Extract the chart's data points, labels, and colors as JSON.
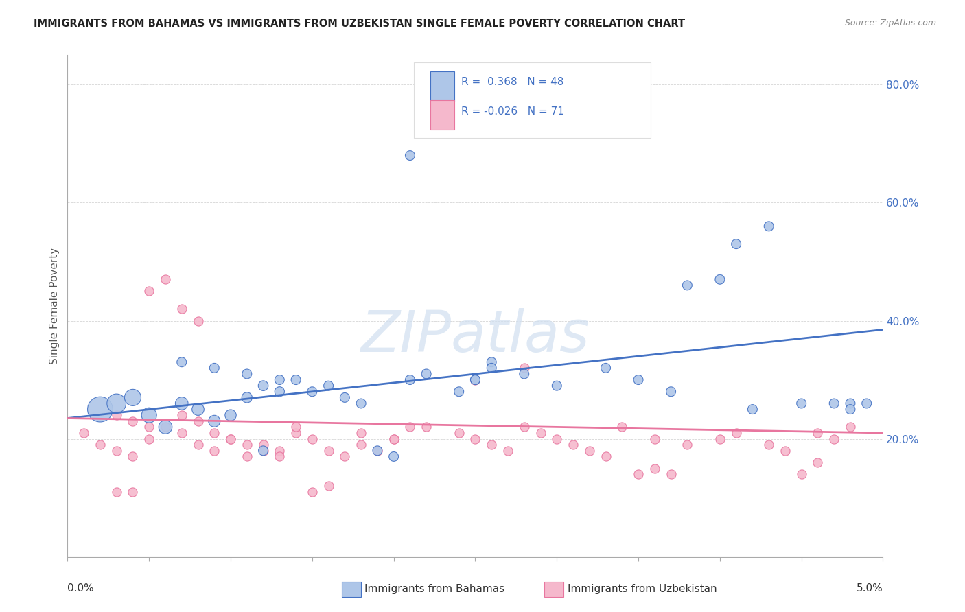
{
  "title": "IMMIGRANTS FROM BAHAMAS VS IMMIGRANTS FROM UZBEKISTAN SINGLE FEMALE POVERTY CORRELATION CHART",
  "source": "Source: ZipAtlas.com",
  "ylabel": "Single Female Poverty",
  "xlim": [
    0.0,
    0.05
  ],
  "ylim": [
    0.0,
    85.0
  ],
  "yticks": [
    20,
    40,
    60,
    80
  ],
  "ytick_labels": [
    "20.0%",
    "40.0%",
    "60.0%",
    "80.0%"
  ],
  "color_bahamas": "#aec6e8",
  "color_uzbekistan": "#f5b8cc",
  "line_color_bahamas": "#4472c4",
  "line_color_uzbekistan": "#e8769f",
  "watermark": "ZIPatlas",
  "watermark_color": "#d0dff0",
  "trend_bahamas": [
    0.0,
    23.5,
    0.05,
    38.5
  ],
  "trend_uzbekistan": [
    0.0,
    23.5,
    0.05,
    21.0
  ],
  "bahamas_x": [
    0.002,
    0.003,
    0.004,
    0.005,
    0.006,
    0.007,
    0.008,
    0.009,
    0.01,
    0.011,
    0.012,
    0.013,
    0.014,
    0.015,
    0.016,
    0.017,
    0.018,
    0.007,
    0.009,
    0.011,
    0.013,
    0.012,
    0.021,
    0.022,
    0.024,
    0.025,
    0.026,
    0.028,
    0.03,
    0.033,
    0.037,
    0.038,
    0.041,
    0.043,
    0.045,
    0.047,
    0.048,
    0.049,
    0.021,
    0.025,
    0.026,
    0.035,
    0.04,
    0.019,
    0.02,
    0.042,
    0.048
  ],
  "bahamas_y": [
    25,
    26,
    27,
    24,
    22,
    26,
    25,
    23,
    24,
    27,
    29,
    28,
    30,
    28,
    29,
    27,
    26,
    33,
    32,
    31,
    30,
    18,
    30,
    31,
    28,
    30,
    33,
    31,
    29,
    32,
    28,
    46,
    53,
    56,
    26,
    26,
    26,
    26,
    68,
    30,
    32,
    30,
    47,
    18,
    17,
    25,
    25
  ],
  "bahamas_sizes": [
    700,
    400,
    300,
    250,
    200,
    180,
    160,
    150,
    140,
    120,
    110,
    105,
    100,
    100,
    100,
    100,
    100,
    100,
    100,
    100,
    100,
    100,
    100,
    100,
    100,
    100,
    100,
    100,
    100,
    100,
    100,
    100,
    100,
    100,
    100,
    100,
    100,
    100,
    100,
    100,
    100,
    100,
    100,
    100,
    100,
    100,
    100
  ],
  "uzbekistan_x": [
    0.001,
    0.002,
    0.003,
    0.004,
    0.005,
    0.006,
    0.007,
    0.008,
    0.009,
    0.01,
    0.011,
    0.012,
    0.013,
    0.014,
    0.015,
    0.016,
    0.017,
    0.018,
    0.019,
    0.02,
    0.003,
    0.004,
    0.005,
    0.007,
    0.008,
    0.009,
    0.01,
    0.011,
    0.012,
    0.013,
    0.014,
    0.022,
    0.024,
    0.025,
    0.026,
    0.027,
    0.028,
    0.029,
    0.03,
    0.031,
    0.032,
    0.033,
    0.034,
    0.018,
    0.02,
    0.021,
    0.036,
    0.038,
    0.04,
    0.041,
    0.043,
    0.044,
    0.046,
    0.047,
    0.048,
    0.025,
    0.028,
    0.005,
    0.006,
    0.007,
    0.008,
    0.035,
    0.036,
    0.037,
    0.045,
    0.046,
    0.003,
    0.004,
    0.015,
    0.016
  ],
  "uzbekistan_y": [
    21,
    19,
    18,
    17,
    20,
    22,
    21,
    19,
    18,
    20,
    17,
    19,
    18,
    21,
    20,
    18,
    17,
    19,
    18,
    20,
    24,
    23,
    22,
    24,
    23,
    21,
    20,
    19,
    18,
    17,
    22,
    22,
    21,
    20,
    19,
    18,
    22,
    21,
    20,
    19,
    18,
    17,
    22,
    21,
    20,
    22,
    20,
    19,
    20,
    21,
    19,
    18,
    21,
    20,
    22,
    30,
    32,
    45,
    47,
    42,
    40,
    14,
    15,
    14,
    14,
    16,
    11,
    11,
    11,
    12
  ]
}
